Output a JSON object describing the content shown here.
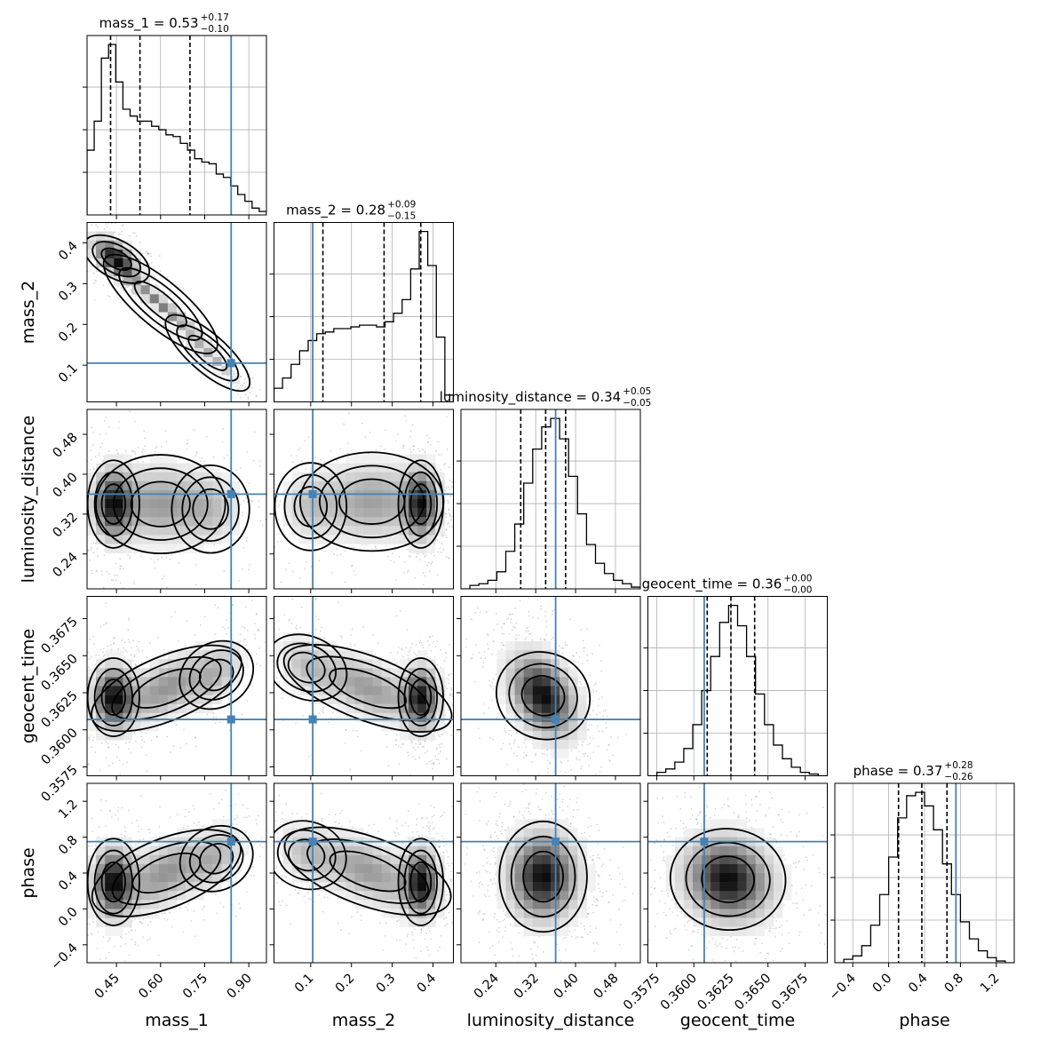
{
  "colors": {
    "truth": "#4682b4",
    "line": "#000000",
    "grid": "#b0b0b0",
    "density": "#000000"
  },
  "chart_data": {
    "type": "corner",
    "parameters": [
      {
        "name": "mass_1",
        "xlabel": "mass_1",
        "title_main": "mass_1 = 0.53",
        "title_plus": "+0.17",
        "title_minus": "−0.10",
        "median": 0.53,
        "err_plus": 0.17,
        "err_minus": 0.1,
        "range": [
          0.35,
          0.96
        ],
        "ticks": [
          0.45,
          0.6,
          0.75,
          0.9
        ],
        "tick_labels": [
          "0.45",
          "0.60",
          "0.75",
          "0.90"
        ],
        "quantile_lines": [
          0.43,
          0.53,
          0.7
        ],
        "truth": 0.84,
        "hist": [
          0.38,
          0.55,
          0.92,
          1.0,
          0.78,
          0.62,
          0.58,
          0.55,
          0.55,
          0.52,
          0.5,
          0.47,
          0.46,
          0.42,
          0.38,
          0.33,
          0.31,
          0.3,
          0.24,
          0.22,
          0.17,
          0.12,
          0.08,
          0.04,
          0.02
        ]
      },
      {
        "name": "mass_2",
        "xlabel": "mass_2",
        "ylabel": "mass_2",
        "title_main": "mass_2 = 0.28",
        "title_plus": "+0.09",
        "title_minus": "−0.15",
        "median": 0.28,
        "err_plus": 0.09,
        "err_minus": 0.15,
        "range": [
          0.01,
          0.45
        ],
        "ticks": [
          0.1,
          0.2,
          0.3,
          0.4
        ],
        "tick_labels": [
          "0.1",
          "0.2",
          "0.3",
          "0.4"
        ],
        "quantile_lines": [
          0.13,
          0.28,
          0.37
        ],
        "truth": 0.105,
        "hist": [
          0.08,
          0.14,
          0.22,
          0.3,
          0.36,
          0.4,
          0.41,
          0.43,
          0.43,
          0.44,
          0.45,
          0.45,
          0.44,
          0.47,
          0.52,
          0.6,
          0.78,
          1.0,
          0.8,
          0.38,
          0.04
        ]
      },
      {
        "name": "luminosity_distance",
        "xlabel": "luminosity_distance",
        "ylabel": "luminosity_distance",
        "title_main": "luminosity_distance = 0.34",
        "title_plus": "+0.05",
        "title_minus": "−0.05",
        "median": 0.34,
        "err_plus": 0.05,
        "err_minus": 0.05,
        "range": [
          0.17,
          0.53
        ],
        "ticks": [
          0.24,
          0.32,
          0.4,
          0.48
        ],
        "tick_labels": [
          "0.24",
          "0.32",
          "0.40",
          "0.48"
        ],
        "quantile_lines": [
          0.29,
          0.34,
          0.38
        ],
        "truth": 0.36,
        "hist": [
          0.0,
          0.02,
          0.03,
          0.05,
          0.1,
          0.22,
          0.38,
          0.62,
          0.82,
          0.95,
          1.0,
          0.88,
          0.66,
          0.44,
          0.26,
          0.15,
          0.09,
          0.05,
          0.03,
          0.01
        ]
      },
      {
        "name": "geocent_time",
        "xlabel": "geocent_time",
        "ylabel": "geocent_time",
        "title_main": "geocent_time = 0.36",
        "title_plus": "+0.00",
        "title_minus": "−0.00",
        "median": 0.3625,
        "err_plus": 0.0016,
        "err_minus": 0.0016,
        "range": [
          0.3569,
          0.369
        ],
        "ticks": [
          0.3575,
          0.36,
          0.3625,
          0.365,
          0.3675
        ],
        "tick_labels": [
          "0.3575",
          "0.3600",
          "0.3625",
          "0.3650",
          "0.3675"
        ],
        "quantile_lines": [
          0.3609,
          0.3625,
          0.3641
        ],
        "truth": 0.3607,
        "hist": [
          0.0,
          0.02,
          0.04,
          0.08,
          0.16,
          0.3,
          0.5,
          0.7,
          0.9,
          1.0,
          0.88,
          0.7,
          0.48,
          0.3,
          0.18,
          0.1,
          0.05,
          0.02,
          0.01,
          0.0
        ]
      },
      {
        "name": "phase",
        "xlabel": "phase",
        "ylabel": "phase",
        "title_main": "phase = 0.37",
        "title_plus": "+0.28",
        "title_minus": "−0.26",
        "median": 0.37,
        "err_plus": 0.28,
        "err_minus": 0.26,
        "range": [
          -0.6,
          1.4
        ],
        "ticks": [
          -0.4,
          0.0,
          0.4,
          0.8,
          1.2
        ],
        "tick_labels": [
          "−0.4",
          "0.0",
          "0.4",
          "0.8",
          "1.2"
        ],
        "quantile_lines": [
          0.11,
          0.37,
          0.65
        ],
        "truth": 0.75,
        "hist": [
          0.0,
          0.02,
          0.04,
          0.1,
          0.22,
          0.4,
          0.62,
          0.85,
          0.98,
          1.0,
          0.92,
          0.78,
          0.58,
          0.4,
          0.24,
          0.14,
          0.07,
          0.03,
          0.01,
          0.0
        ]
      }
    ],
    "pairs": [
      {
        "x": "mass_1",
        "y": "mass_2",
        "blobs": [
          {
            "cx": 0.45,
            "cy": 0.36,
            "sx": 0.045,
            "sy": 0.03,
            "rho": -0.6,
            "w": 1.0
          },
          {
            "cx": 0.6,
            "cy": 0.25,
            "sx": 0.08,
            "sy": 0.05,
            "rho": -0.97,
            "w": 0.55
          },
          {
            "cx": 0.76,
            "cy": 0.13,
            "sx": 0.06,
            "sy": 0.04,
            "rho": -0.95,
            "w": 0.35
          }
        ]
      },
      {
        "x": "mass_1",
        "y": "luminosity_distance",
        "blobs": [
          {
            "cx": 0.44,
            "cy": 0.34,
            "sx": 0.04,
            "sy": 0.04,
            "rho": 0.0,
            "w": 1.0
          },
          {
            "cx": 0.6,
            "cy": 0.34,
            "sx": 0.1,
            "sy": 0.045,
            "rho": 0.0,
            "w": 0.45
          },
          {
            "cx": 0.77,
            "cy": 0.33,
            "sx": 0.06,
            "sy": 0.04,
            "rho": 0.0,
            "w": 0.25
          }
        ]
      },
      {
        "x": "mass_1",
        "y": "geocent_time",
        "blobs": [
          {
            "cx": 0.44,
            "cy": 0.3622,
            "sx": 0.04,
            "sy": 0.0012,
            "rho": 0.0,
            "w": 1.0
          },
          {
            "cx": 0.62,
            "cy": 0.3628,
            "sx": 0.1,
            "sy": 0.0014,
            "rho": 0.6,
            "w": 0.45
          },
          {
            "cx": 0.79,
            "cy": 0.3637,
            "sx": 0.05,
            "sy": 0.0013,
            "rho": 0.5,
            "w": 0.25
          }
        ]
      },
      {
        "x": "mass_1",
        "y": "phase",
        "blobs": [
          {
            "cx": 0.44,
            "cy": 0.3,
            "sx": 0.04,
            "sy": 0.22,
            "rho": 0.0,
            "w": 1.0
          },
          {
            "cx": 0.62,
            "cy": 0.4,
            "sx": 0.1,
            "sy": 0.24,
            "rho": 0.55,
            "w": 0.45
          },
          {
            "cx": 0.79,
            "cy": 0.56,
            "sx": 0.05,
            "sy": 0.2,
            "rho": 0.4,
            "w": 0.25
          }
        ]
      },
      {
        "x": "mass_2",
        "y": "luminosity_distance",
        "blobs": [
          {
            "cx": 0.37,
            "cy": 0.34,
            "sx": 0.025,
            "sy": 0.04,
            "rho": 0.0,
            "w": 1.0
          },
          {
            "cx": 0.25,
            "cy": 0.345,
            "sx": 0.08,
            "sy": 0.045,
            "rho": 0.0,
            "w": 0.45
          },
          {
            "cx": 0.1,
            "cy": 0.335,
            "sx": 0.04,
            "sy": 0.04,
            "rho": 0.0,
            "w": 0.25
          }
        ]
      },
      {
        "x": "mass_2",
        "y": "geocent_time",
        "blobs": [
          {
            "cx": 0.37,
            "cy": 0.3622,
            "sx": 0.025,
            "sy": 0.0012,
            "rho": 0.0,
            "w": 1.0
          },
          {
            "cx": 0.24,
            "cy": 0.3628,
            "sx": 0.08,
            "sy": 0.0014,
            "rho": -0.6,
            "w": 0.45
          },
          {
            "cx": 0.09,
            "cy": 0.3642,
            "sx": 0.04,
            "sy": 0.0012,
            "rho": -0.4,
            "w": 0.25
          }
        ]
      },
      {
        "x": "mass_2",
        "y": "phase",
        "blobs": [
          {
            "cx": 0.37,
            "cy": 0.3,
            "sx": 0.025,
            "sy": 0.22,
            "rho": 0.0,
            "w": 1.0
          },
          {
            "cx": 0.24,
            "cy": 0.42,
            "sx": 0.08,
            "sy": 0.24,
            "rho": -0.55,
            "w": 0.45
          },
          {
            "cx": 0.09,
            "cy": 0.6,
            "sx": 0.04,
            "sy": 0.2,
            "rho": -0.3,
            "w": 0.25
          }
        ]
      },
      {
        "x": "luminosity_distance",
        "y": "geocent_time",
        "blobs": [
          {
            "cx": 0.335,
            "cy": 0.3623,
            "sx": 0.038,
            "sy": 0.0016,
            "rho": -0.35,
            "w": 1.0
          }
        ]
      },
      {
        "x": "luminosity_distance",
        "y": "phase",
        "blobs": [
          {
            "cx": 0.335,
            "cy": 0.36,
            "sx": 0.04,
            "sy": 0.28,
            "rho": 0.0,
            "w": 1.0
          }
        ]
      },
      {
        "x": "geocent_time",
        "y": "phase",
        "blobs": [
          {
            "cx": 0.3623,
            "cy": 0.33,
            "sx": 0.0017,
            "sy": 0.27,
            "rho": -0.1,
            "w": 1.0
          }
        ]
      }
    ]
  }
}
